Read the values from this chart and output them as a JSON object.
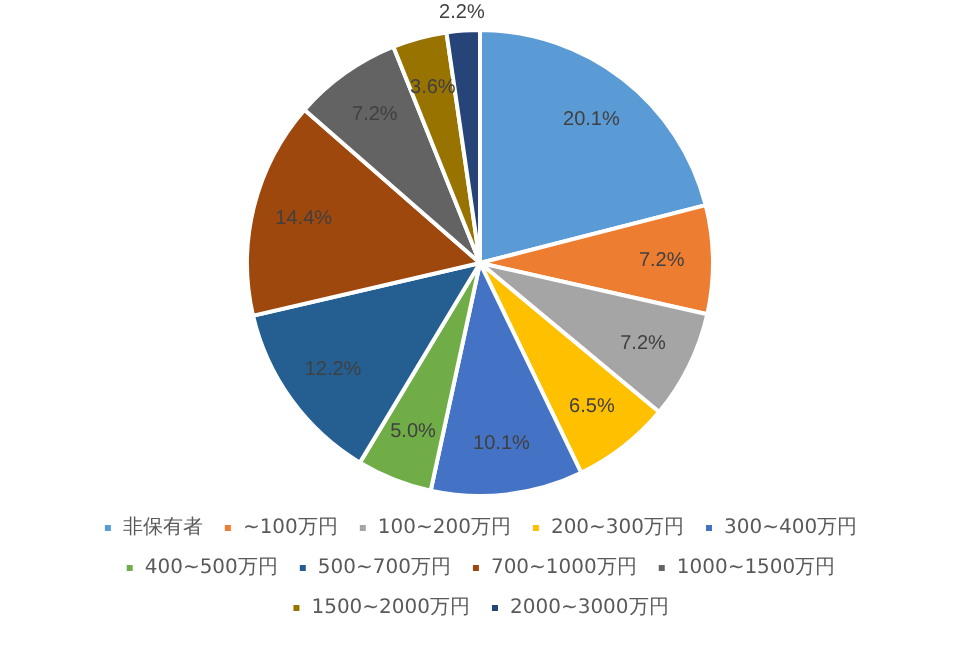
{
  "chart_data": {
    "type": "pie",
    "categories": [
      "非保有者",
      "~100万円",
      "100~200万円",
      "200~300万円",
      "300~400万円",
      "400~500万円",
      "500~700万円",
      "700~1000万円",
      "1000~1500万円",
      "1500~2000万円",
      "2000~3000万円"
    ],
    "values": [
      20.1,
      7.2,
      7.2,
      6.5,
      10.1,
      5.0,
      12.2,
      14.4,
      7.2,
      3.6,
      2.2
    ],
    "value_labels": [
      "20.1%",
      "7.2%",
      "7.2%",
      "6.5%",
      "10.1%",
      "5.0%",
      "12.2%",
      "14.4%",
      "7.2%",
      "3.6%",
      "2.2%"
    ],
    "colors": [
      "#5b9bd5",
      "#ed7d31",
      "#a5a5a5",
      "#ffc000",
      "#4472c4",
      "#70ad47",
      "#255e91",
      "#9e480e",
      "#636363",
      "#997300",
      "#264478"
    ],
    "legend": "bottom"
  }
}
